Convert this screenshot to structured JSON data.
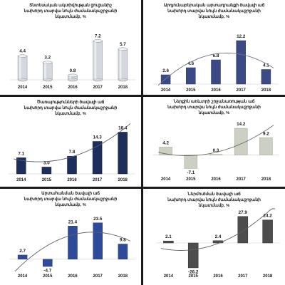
{
  "chart_data": [
    {
      "type": "bar",
      "title_lines": [
        "Տնտեսական ակտիվության ցուցանիշ",
        "նախորդ տարվա նույն ժամանակաշրջանի",
        "նկատմամբ, %"
      ],
      "categories": [
        "2014",
        "2015",
        "2016",
        "2017",
        "2018"
      ],
      "values": [
        4.4,
        3.2,
        0.8,
        7.2,
        5.7
      ],
      "ylim": [
        0,
        9.5
      ],
      "trend_line": false,
      "colors": {
        "bar": "#d4d7dd",
        "bar_edge": "#9a9ea6"
      }
    },
    {
      "type": "bar",
      "title_lines": [
        "Արդյունաբերական արտադրանքի ծավալի աճ",
        "նախորդ տարվա նույն ժամանակաշրջանի",
        "նկատմամբ, %"
      ],
      "categories": [
        "2014",
        "2015",
        "2016",
        "2017",
        "2018"
      ],
      "values": [
        2.6,
        4.6,
        6.8,
        12.2,
        4.1
      ],
      "ylim": [
        0,
        15
      ],
      "trend_line": true,
      "colors": {
        "bar": "#3b4a85",
        "bar_edge": "#2a3565",
        "line": "#6e7488"
      }
    },
    {
      "type": "bar",
      "title_lines": [
        "Ծառայությունների ծավալի աճ",
        "նախորդ տարվա նույն ժամանակաշրջանի",
        "նկատմամբ, %"
      ],
      "categories": [
        "2014",
        "2015",
        "2016",
        "2017",
        "2018"
      ],
      "values": [
        7.1,
        3.0,
        7.8,
        14.3,
        18.4
      ],
      "ylim": [
        0,
        22
      ],
      "trend_line": true,
      "colors": {
        "bar": "#1d2d5c",
        "bar_edge": "#121d3f",
        "line": "#5a5f70"
      }
    },
    {
      "type": "bar",
      "title_lines": [
        "Ներքին առևտրի շրջանառության աճ",
        "նախորդ տարվա նույն ժամանակաշրջանի",
        "նկատմամբ, %"
      ],
      "categories": [
        "2014",
        "2015",
        "2016",
        "2017",
        "2018"
      ],
      "values": [
        4.2,
        -7.1,
        0.3,
        14.2,
        9.2
      ],
      "ylim": [
        -10,
        18
      ],
      "trend_line": true,
      "colors": {
        "bar": "#cbd0c3",
        "bar_edge": "#9ea391",
        "line": "#6a6f66"
      }
    },
    {
      "type": "bar",
      "title_lines": [
        "Արտահանման ծավալի աճ",
        "նախորդ տարվա նույն ժամանակաշրջանի",
        "նկատմամբ, %"
      ],
      "categories": [
        "2014",
        "2015",
        "2016",
        "2017",
        "2018"
      ],
      "values": [
        2.7,
        -4.7,
        21.4,
        23.5,
        9.8
      ],
      "ylim": [
        -7,
        28
      ],
      "trend_line": true,
      "colors": {
        "bar": "#2f4a98",
        "bar_edge": "#1f3470",
        "line": "#5c6070"
      }
    },
    {
      "type": "bar",
      "title_lines": [
        "Ներմուծման ծավալի աճ",
        "նախորդ տարվա նույն ժամանակաշրջանի",
        "նկատմամբ, %"
      ],
      "categories": [
        "2014",
        "2015",
        "2016",
        "2017",
        "2018"
      ],
      "values": [
        2.1,
        -26.2,
        2.4,
        27.9,
        24.2
      ],
      "ylim": [
        -30,
        33
      ],
      "trend_line": true,
      "colors": {
        "bar": "#4d4d4d",
        "bar_edge": "#2e2e2e",
        "line": "#5f5f5f"
      }
    }
  ]
}
